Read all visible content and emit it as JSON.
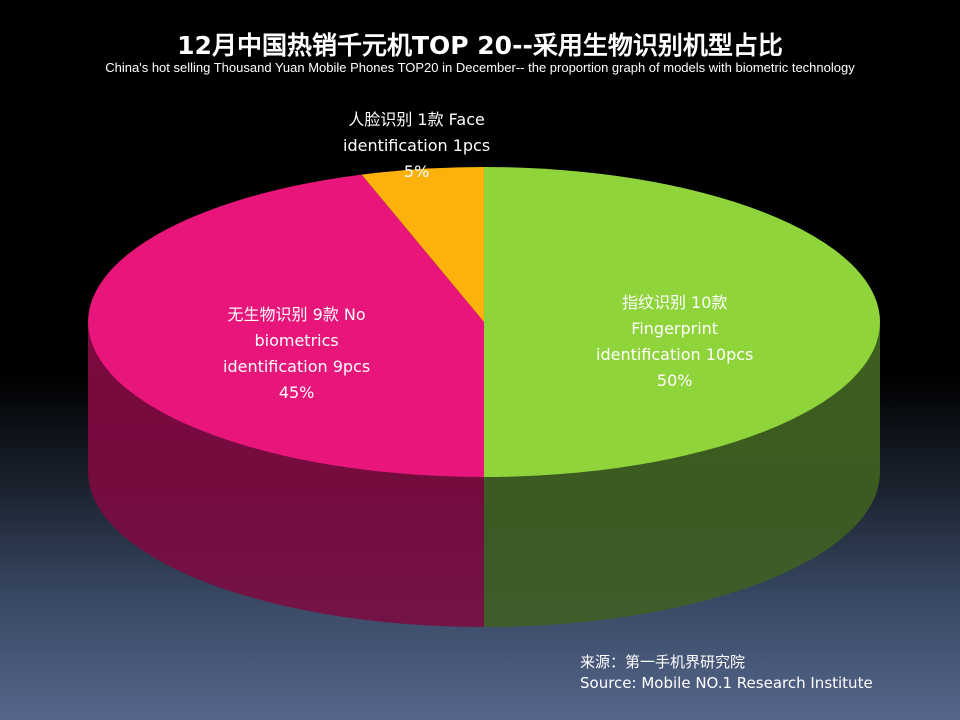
{
  "title": "12月中国热销千元机TOP 20--采用生物识别机型占比",
  "subtitle": "China's hot selling Thousand Yuan Mobile Phones TOP20 in December-- the proportion graph of models with biometric technology",
  "chart_data": {
    "type": "pie",
    "title": "12月中国热销千元机TOP 20--采用生物识别机型占比",
    "subtitle": "China's hot selling Thousand Yuan Mobile Phones TOP20 in December-- the proportion graph of models with biometric technology",
    "slices": [
      {
        "category": "指纹识别 10款 Fingerprint identification 10pcs",
        "count": 10,
        "percent": 50,
        "color": "#8fd43a",
        "side_color": "#3f6020",
        "label_lines": [
          "指纹识别  10款",
          "Fingerprint",
          "identification 10pcs",
          "50%"
        ]
      },
      {
        "category": "无生物识别 9款 No biometrics identification 9pcs",
        "count": 9,
        "percent": 45,
        "color": "#e8157a",
        "side_color": "#7d0a40",
        "label_lines": [
          "无生物识别  9款 No",
          "biometrics",
          "identification 9pcs",
          "45%"
        ]
      },
      {
        "category": "人脸识别 1款 Face identification 1pcs",
        "count": 1,
        "percent": 5,
        "color": "#fcb20c",
        "side_color": "#8a6006",
        "label_lines": [
          "人脸识别 1款 Face",
          "identification 1pcs",
          "5%"
        ]
      }
    ],
    "legend": "none"
  },
  "source": {
    "line1": "来源：第一手机界研究院",
    "line2": "Source: Mobile NO.1 Research Institute"
  }
}
